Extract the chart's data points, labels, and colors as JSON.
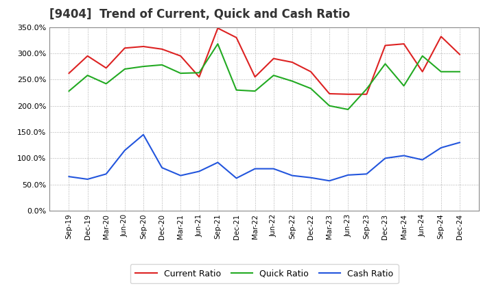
{
  "title": "[9404]  Trend of Current, Quick and Cash Ratio",
  "x_labels": [
    "Sep-19",
    "Dec-19",
    "Mar-20",
    "Jun-20",
    "Sep-20",
    "Dec-20",
    "Mar-21",
    "Jun-21",
    "Sep-21",
    "Dec-21",
    "Mar-22",
    "Jun-22",
    "Sep-22",
    "Dec-22",
    "Mar-23",
    "Jun-23",
    "Sep-23",
    "Dec-23",
    "Mar-24",
    "Jun-24",
    "Sep-24",
    "Dec-24"
  ],
  "current_ratio": [
    262,
    295,
    272,
    310,
    313,
    308,
    295,
    255,
    348,
    330,
    255,
    290,
    283,
    265,
    223,
    222,
    222,
    315,
    318,
    265,
    332,
    298
  ],
  "quick_ratio": [
    228,
    258,
    242,
    270,
    275,
    278,
    262,
    263,
    318,
    230,
    228,
    258,
    247,
    233,
    200,
    193,
    232,
    280,
    238,
    295,
    265,
    265
  ],
  "cash_ratio": [
    65,
    60,
    70,
    115,
    145,
    82,
    67,
    75,
    92,
    62,
    80,
    80,
    67,
    63,
    57,
    68,
    70,
    100,
    105,
    97,
    120,
    130
  ],
  "current_color": "#dd2222",
  "quick_color": "#22aa22",
  "cash_color": "#2255dd",
  "bg_color": "#ffffff",
  "plot_bg_color": "#ffffff",
  "grid_color": "#aaaaaa",
  "ylim": [
    0,
    350
  ],
  "yticks": [
    0,
    50,
    100,
    150,
    200,
    250,
    300,
    350
  ],
  "title_fontsize": 12,
  "legend_labels": [
    "Current Ratio",
    "Quick Ratio",
    "Cash Ratio"
  ]
}
